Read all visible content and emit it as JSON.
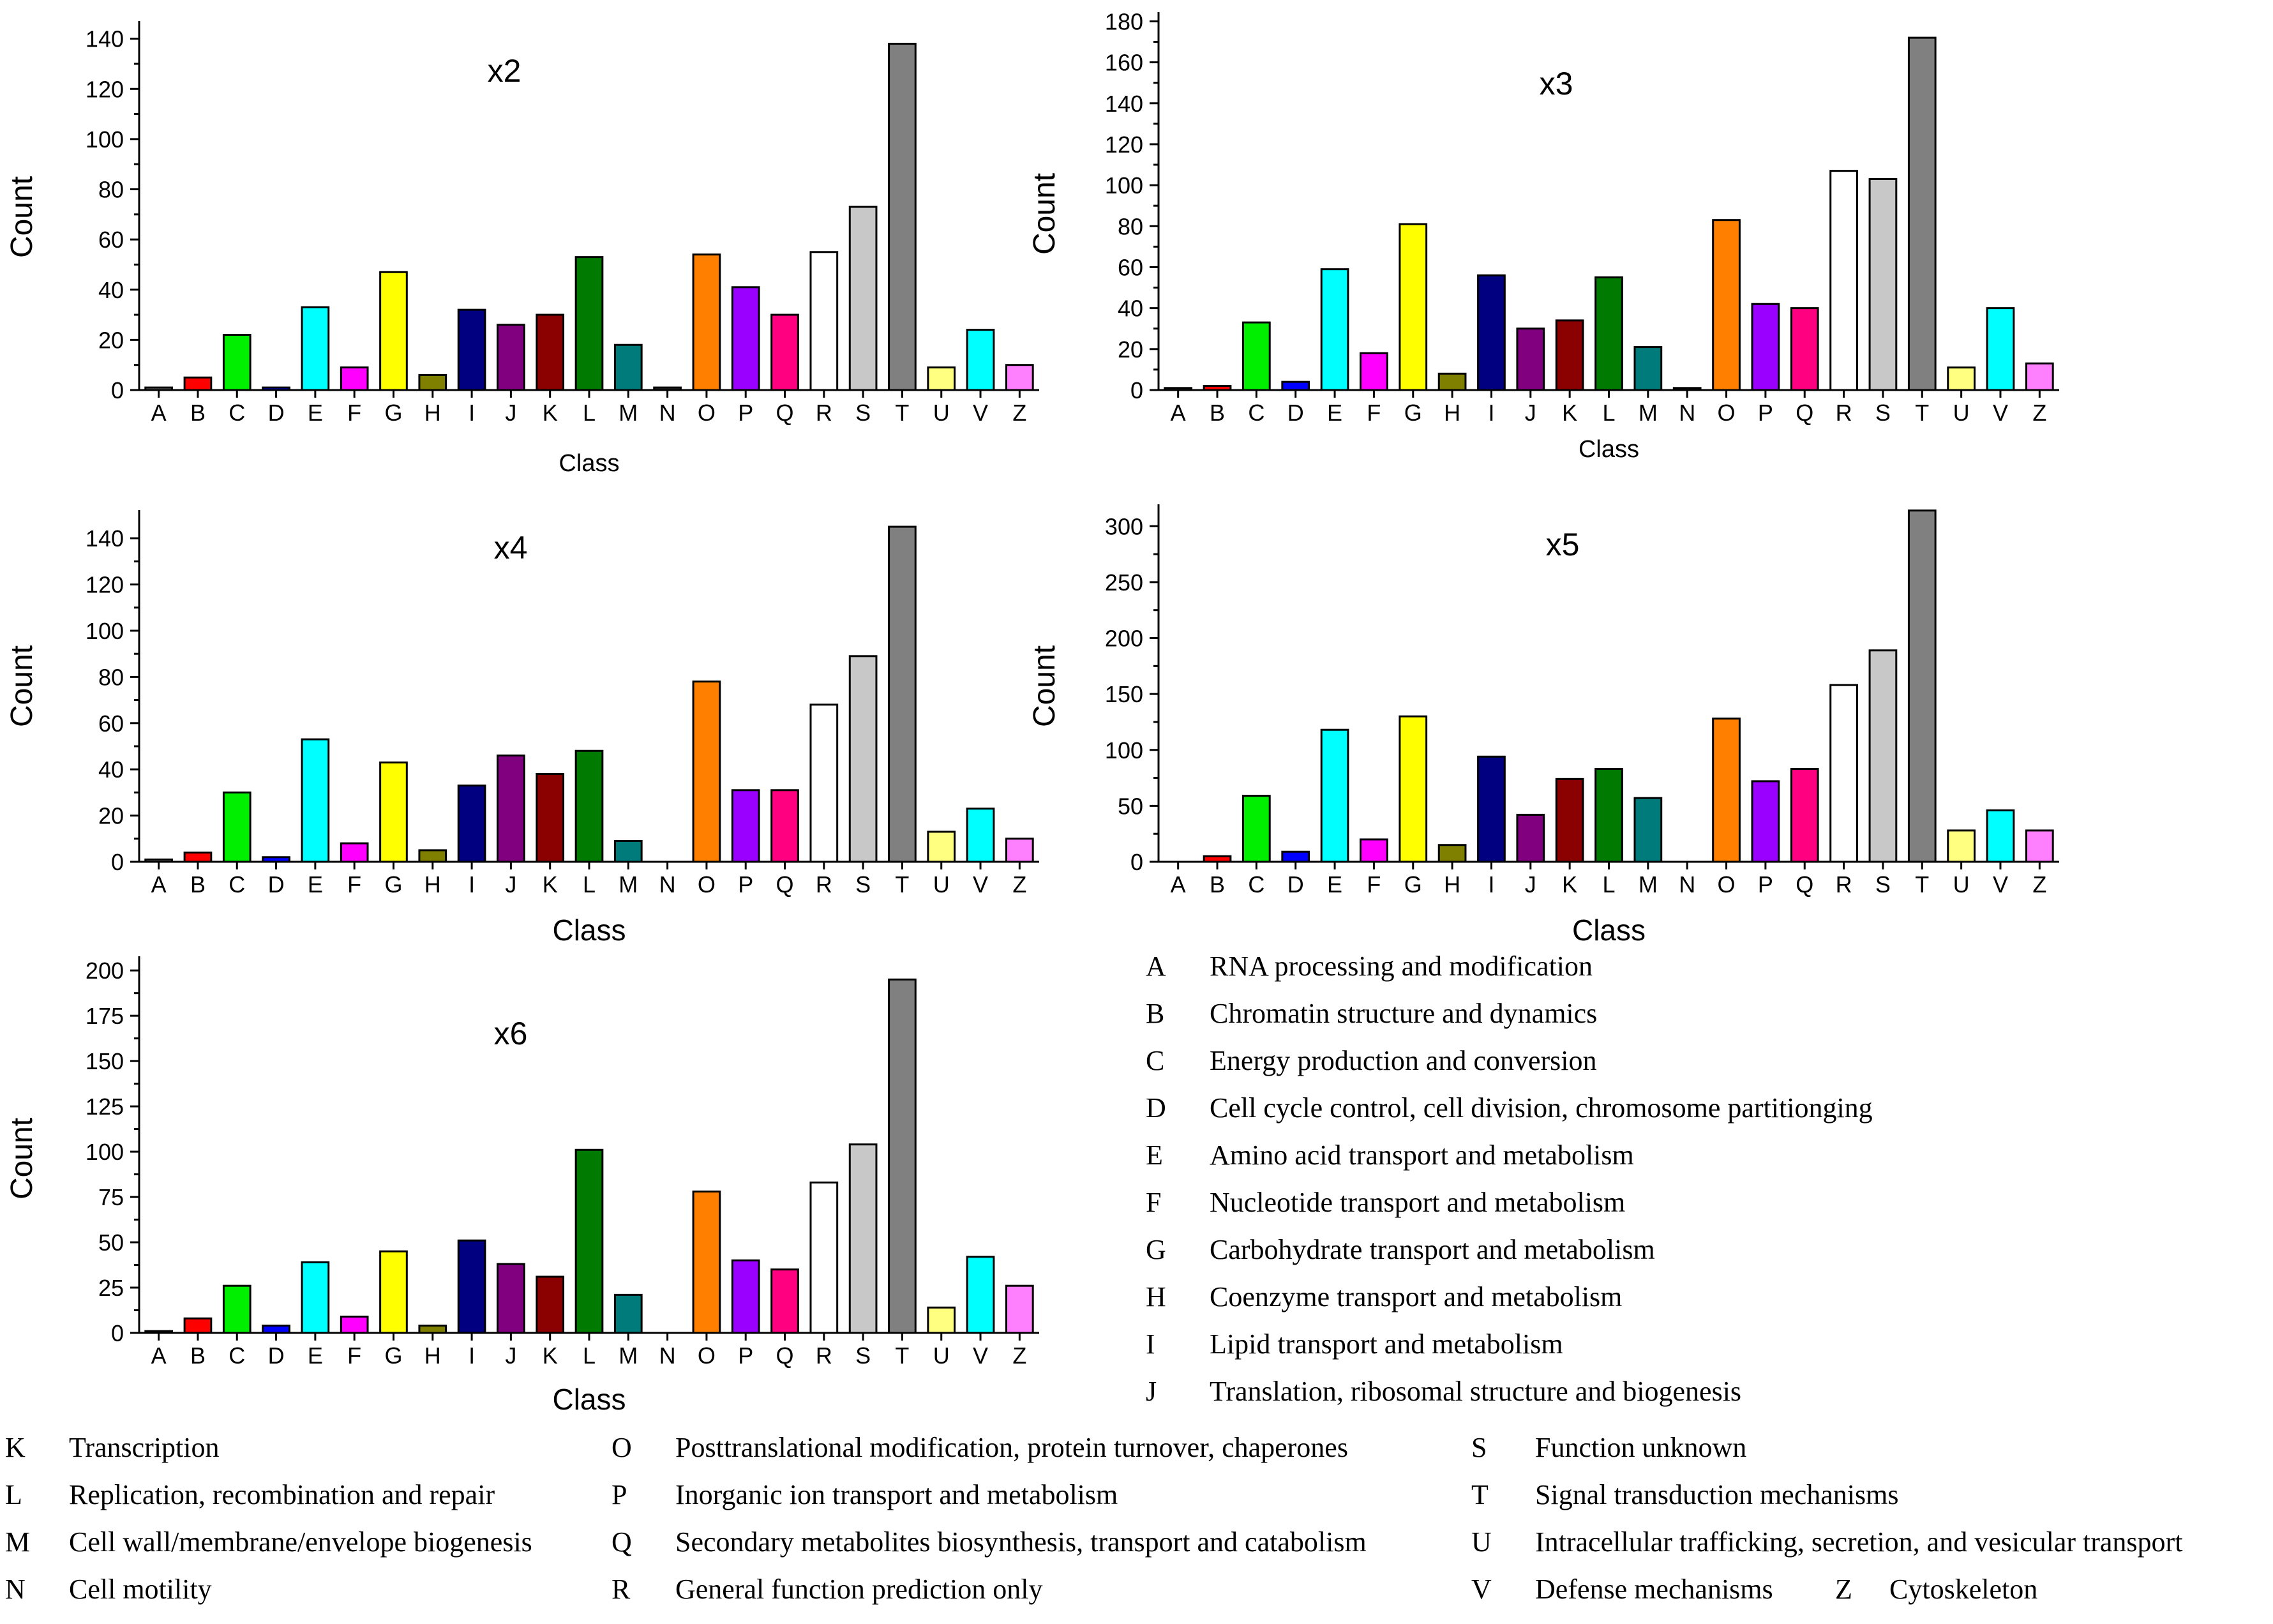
{
  "legend_colors": {
    "A": "#777777",
    "B": "#ff0000",
    "C": "#00ee00",
    "D": "#0000ff",
    "E": "#00ffff",
    "F": "#ff00ff",
    "G": "#ffff00",
    "H": "#808000",
    "I": "#000080",
    "J": "#800080",
    "K": "#8b0000",
    "L": "#007a00",
    "M": "#007b7b",
    "N": "#333333",
    "O": "#ff8000",
    "P": "#9900ff",
    "Q": "#ff0080",
    "R": "#ffffff",
    "S": "#c8c8c8",
    "T": "#808080",
    "U": "#ffff80",
    "V": "#00ffff",
    "Z": "#ff80ff"
  },
  "chart_data": [
    {
      "type": "bar",
      "title": "x2",
      "xlabel": "Class",
      "ylabel": "Count",
      "ylim": [
        0,
        145
      ],
      "yticks": [
        0,
        20,
        40,
        60,
        80,
        100,
        120,
        140
      ],
      "categories": [
        "A",
        "B",
        "C",
        "D",
        "E",
        "F",
        "G",
        "H",
        "I",
        "J",
        "K",
        "L",
        "M",
        "N",
        "O",
        "P",
        "Q",
        "R",
        "S",
        "T",
        "U",
        "V",
        "Z"
      ],
      "values": [
        1,
        5,
        22,
        1,
        33,
        9,
        47,
        6,
        32,
        26,
        30,
        53,
        18,
        1,
        54,
        41,
        30,
        55,
        73,
        138,
        9,
        24,
        10
      ]
    },
    {
      "type": "bar",
      "title": "x3",
      "xlabel": "Class",
      "ylabel": "Count",
      "ylim": [
        0,
        182
      ],
      "yticks": [
        0,
        20,
        40,
        60,
        80,
        100,
        120,
        140,
        160,
        180
      ],
      "categories": [
        "A",
        "B",
        "C",
        "D",
        "E",
        "F",
        "G",
        "H",
        "I",
        "J",
        "K",
        "L",
        "M",
        "N",
        "O",
        "P",
        "Q",
        "R",
        "S",
        "T",
        "U",
        "V",
        "Z"
      ],
      "values": [
        1,
        2,
        33,
        4,
        59,
        18,
        81,
        8,
        56,
        30,
        34,
        55,
        21,
        1,
        83,
        42,
        40,
        107,
        103,
        172,
        11,
        40,
        13
      ]
    },
    {
      "type": "bar",
      "title": "x4",
      "xlabel": "Class",
      "ylabel": "Count",
      "ylim": [
        0,
        150
      ],
      "yticks": [
        0,
        20,
        40,
        60,
        80,
        100,
        120,
        140
      ],
      "categories": [
        "A",
        "B",
        "C",
        "D",
        "E",
        "F",
        "G",
        "H",
        "I",
        "J",
        "K",
        "L",
        "M",
        "N",
        "O",
        "P",
        "Q",
        "R",
        "S",
        "T",
        "U",
        "V",
        "Z"
      ],
      "values": [
        1,
        4,
        30,
        2,
        53,
        8,
        43,
        5,
        33,
        46,
        38,
        48,
        9,
        0,
        78,
        31,
        31,
        68,
        89,
        145,
        13,
        23,
        10
      ]
    },
    {
      "type": "bar",
      "title": "x5",
      "xlabel": "Class",
      "ylabel": "Count",
      "ylim": [
        0,
        315
      ],
      "yticks": [
        0,
        50,
        100,
        150,
        200,
        250,
        300
      ],
      "categories": [
        "A",
        "B",
        "C",
        "D",
        "E",
        "F",
        "G",
        "H",
        "I",
        "J",
        "K",
        "L",
        "M",
        "N",
        "O",
        "P",
        "Q",
        "R",
        "S",
        "T",
        "U",
        "V",
        "Z"
      ],
      "values": [
        0,
        5,
        59,
        9,
        118,
        20,
        130,
        15,
        94,
        42,
        74,
        83,
        57,
        0,
        128,
        72,
        83,
        158,
        189,
        314,
        28,
        46,
        28
      ]
    },
    {
      "type": "bar",
      "title": "x6",
      "xlabel": "Class",
      "ylabel": "Count",
      "ylim": [
        0,
        205
      ],
      "yticks": [
        0,
        25,
        50,
        75,
        100,
        125,
        150,
        175,
        200
      ],
      "categories": [
        "A",
        "B",
        "C",
        "D",
        "E",
        "F",
        "G",
        "H",
        "I",
        "J",
        "K",
        "L",
        "M",
        "N",
        "O",
        "P",
        "Q",
        "R",
        "S",
        "T",
        "U",
        "V",
        "Z"
      ],
      "values": [
        1,
        8,
        26,
        4,
        39,
        9,
        45,
        4,
        51,
        38,
        31,
        101,
        21,
        0,
        78,
        40,
        35,
        83,
        104,
        195,
        14,
        42,
        26
      ]
    }
  ],
  "legend_right": [
    {
      "code": "A",
      "desc": "RNA processing and modification"
    },
    {
      "code": "B",
      "desc": "Chromatin structure and dynamics"
    },
    {
      "code": "C",
      "desc": "Energy production and conversion"
    },
    {
      "code": "D",
      "desc": "Cell cycle control, cell division, chromosome partitionging"
    },
    {
      "code": "E",
      "desc": "Amino acid transport and metabolism"
    },
    {
      "code": "F",
      "desc": "Nucleotide transport and metabolism"
    },
    {
      "code": "G",
      "desc": "Carbohydrate transport and metabolism"
    },
    {
      "code": "H",
      "desc": "Coenzyme transport and metabolism"
    },
    {
      "code": "I",
      "desc": "Lipid transport and metabolism"
    },
    {
      "code": "J",
      "desc": "Translation, ribosomal structure and biogenesis"
    }
  ],
  "legend_bottom": [
    [
      {
        "code": "K",
        "desc": "Transcription"
      },
      {
        "code": "L",
        "desc": "Replication, recombination and repair"
      },
      {
        "code": "M",
        "desc": "Cell wall/membrane/envelope biogenesis"
      },
      {
        "code": "N",
        "desc": "Cell motility"
      }
    ],
    [
      {
        "code": "O",
        "desc": "Posttranslational modification, protein turnover, chaperones"
      },
      {
        "code": "P",
        "desc": "Inorganic ion transport and metabolism"
      },
      {
        "code": "Q",
        "desc": "Secondary metabolites biosynthesis, transport and catabolism"
      },
      {
        "code": "R",
        "desc": "General function prediction only"
      }
    ],
    [
      {
        "code": "S",
        "desc": "Function unknown"
      },
      {
        "code": "T",
        "desc": "Signal transduction mechanisms"
      },
      {
        "code": "U",
        "desc": "Intracellular trafficking, secretion, and vesicular transport"
      },
      {
        "code": "V",
        "desc": "Defense mechanisms"
      }
    ]
  ],
  "legend_extra": {
    "code": "Z",
    "desc": "Cytoskeleton"
  }
}
